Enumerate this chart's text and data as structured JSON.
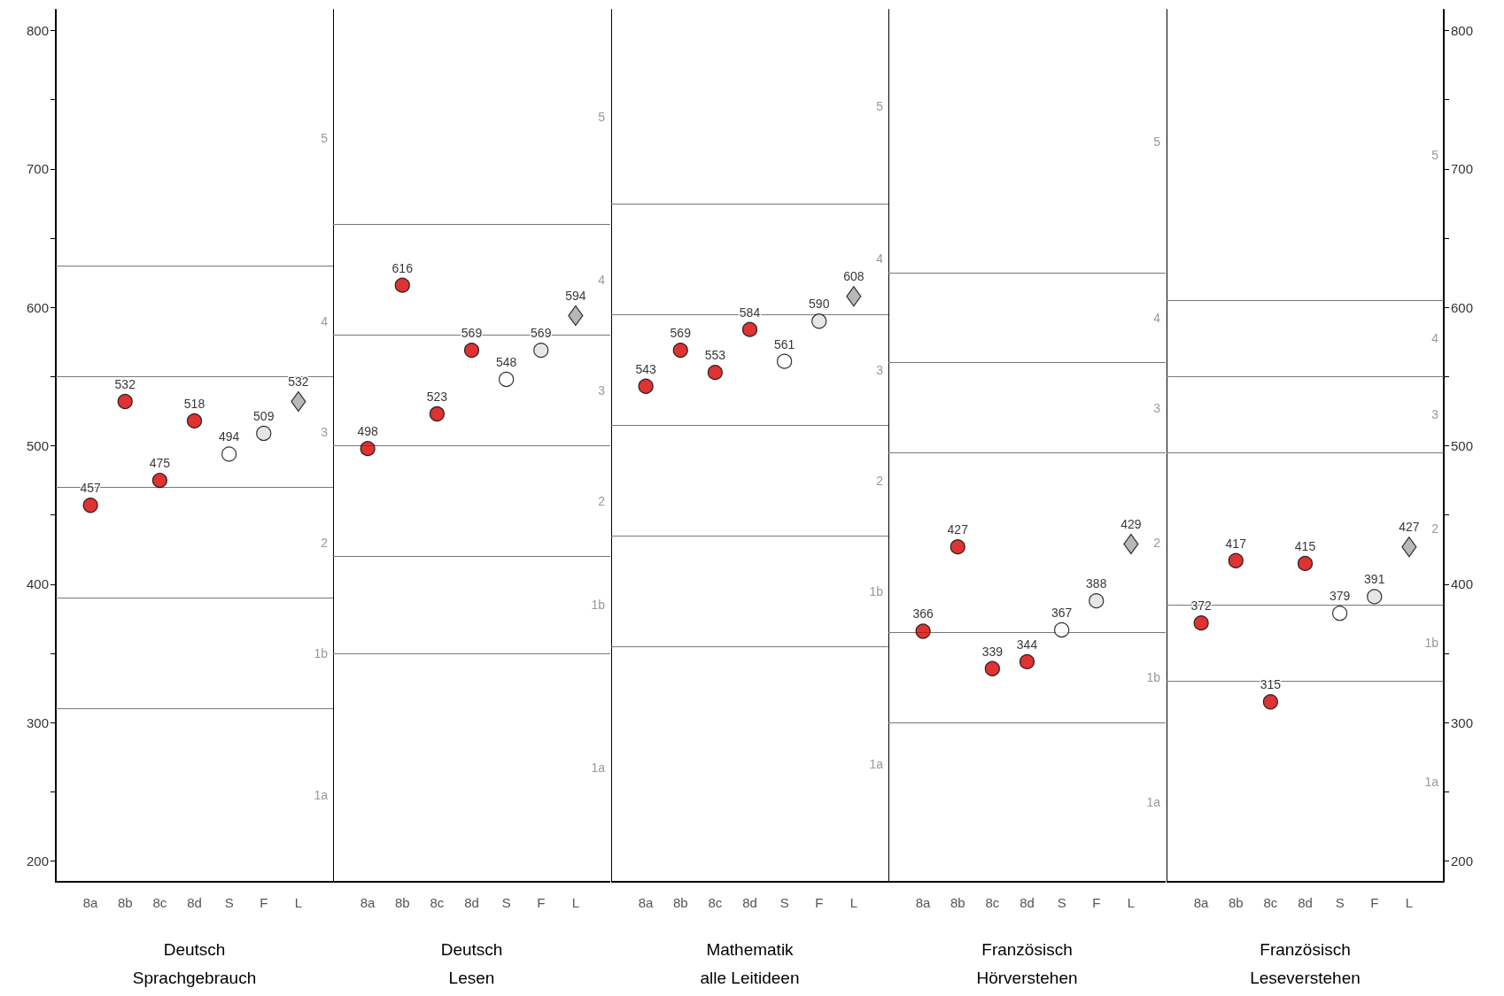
{
  "chart_data": [
    {
      "type": "scatter",
      "xlabel": "Deutsch\nSprachgebrauch",
      "categories": [
        "8a",
        "8b",
        "8c",
        "8d",
        "S",
        "F",
        "L"
      ],
      "ylim": [
        185,
        815
      ],
      "yticks": [
        200,
        {
          "value": 250,
          "label": null
        },
        300,
        {
          "value": 350,
          "label": null
        },
        400,
        {
          "value": 450,
          "label": null
        },
        500,
        {
          "value": 550,
          "label": null
        },
        600,
        {
          "value": 650,
          "label": null
        },
        700,
        {
          "value": 750,
          "label": null
        },
        800
      ],
      "data_labels": true,
      "grid": false,
      "series": [
        {
          "color": "#d40000",
          "marker": "circle",
          "values": [
            457,
            532,
            475,
            518,
            null,
            null,
            null
          ]
        },
        {
          "color": "#ffffff",
          "marker": "circle",
          "values": [
            null,
            null,
            null,
            null,
            494,
            null,
            null
          ]
        },
        {
          "color": "#e0e0e0",
          "marker": "circle",
          "values": [
            null,
            null,
            null,
            null,
            null,
            509,
            null
          ]
        },
        {
          "color": "#a6a6a6",
          "marker": "diamond",
          "values": [
            null,
            null,
            null,
            null,
            null,
            null,
            532
          ]
        }
      ],
      "ref_lines": [
        {
          "axis": "y",
          "value": 630
        },
        {
          "axis": "y",
          "value": 550
        },
        {
          "axis": "y",
          "value": 470
        },
        {
          "axis": "y",
          "value": 390
        },
        {
          "axis": "y",
          "value": 310
        }
      ],
      "annotations": [
        "5",
        "4",
        "3",
        "2",
        "1b",
        "1a"
      ]
    },
    {
      "type": "scatter",
      "xlabel": "Deutsch\nLesen",
      "categories": [
        "8a",
        "8b",
        "8c",
        "8d",
        "S",
        "F",
        "L"
      ],
      "ylim": [
        185,
        815
      ],
      "tick_labels": "x",
      "data_labels": true,
      "grid": false,
      "series": [
        {
          "color": "#d40000",
          "marker": "circle",
          "values": [
            498,
            616,
            523,
            569,
            null,
            null,
            null
          ]
        },
        {
          "color": "#ffffff",
          "marker": "circle",
          "values": [
            null,
            null,
            null,
            null,
            548,
            null,
            null
          ]
        },
        {
          "color": "#e0e0e0",
          "marker": "circle",
          "values": [
            null,
            null,
            null,
            null,
            null,
            569,
            null
          ]
        },
        {
          "color": "#a6a6a6",
          "marker": "diamond",
          "values": [
            null,
            null,
            null,
            null,
            null,
            null,
            594
          ]
        }
      ],
      "ref_lines": [
        {
          "axis": "y",
          "value": 660
        },
        {
          "axis": "y",
          "value": 580
        },
        {
          "axis": "y",
          "value": 500
        },
        {
          "axis": "y",
          "value": 420
        },
        {
          "axis": "y",
          "value": 350
        }
      ],
      "annotations": [
        "5",
        "4",
        "3",
        "2",
        "1b",
        "1a"
      ]
    },
    {
      "type": "scatter",
      "xlabel": "Mathematik\nalle Leitideen",
      "categories": [
        "8a",
        "8b",
        "8c",
        "8d",
        "S",
        "F",
        "L"
      ],
      "ylim": [
        185,
        815
      ],
      "tick_labels": "x",
      "data_labels": true,
      "grid": false,
      "series": [
        {
          "color": "#d40000",
          "marker": "circle",
          "values": [
            543,
            569,
            553,
            584,
            null,
            null,
            null
          ]
        },
        {
          "color": "#ffffff",
          "marker": "circle",
          "values": [
            null,
            null,
            null,
            null,
            561,
            null,
            null
          ]
        },
        {
          "color": "#e0e0e0",
          "marker": "circle",
          "values": [
            null,
            null,
            null,
            null,
            null,
            590,
            null
          ]
        },
        {
          "color": "#a6a6a6",
          "marker": "diamond",
          "values": [
            null,
            null,
            null,
            null,
            null,
            null,
            608
          ]
        }
      ],
      "ref_lines": [
        {
          "axis": "y",
          "value": 675
        },
        {
          "axis": "y",
          "value": 595
        },
        {
          "axis": "y",
          "value": 515
        },
        {
          "axis": "y",
          "value": 435
        },
        {
          "axis": "y",
          "value": 355
        }
      ],
      "annotations": [
        "5",
        "4",
        "3",
        "2",
        "1b",
        "1a"
      ]
    },
    {
      "type": "scatter",
      "xlabel": "Französisch\nHörverstehen",
      "categories": [
        "8a",
        "8b",
        "8c",
        "8d",
        "S",
        "F",
        "L"
      ],
      "ylim": [
        185,
        815
      ],
      "tick_labels": "x",
      "data_labels": true,
      "grid": false,
      "series": [
        {
          "color": "#d40000",
          "marker": "circle",
          "values": [
            366,
            427,
            339,
            344,
            null,
            null,
            null
          ]
        },
        {
          "color": "#ffffff",
          "marker": "circle",
          "values": [
            null,
            null,
            null,
            null,
            367,
            null,
            null
          ]
        },
        {
          "color": "#e0e0e0",
          "marker": "circle",
          "values": [
            null,
            null,
            null,
            null,
            null,
            388,
            null
          ]
        },
        {
          "color": "#a6a6a6",
          "marker": "diamond",
          "values": [
            null,
            null,
            null,
            null,
            null,
            null,
            429
          ]
        }
      ],
      "ref_lines": [
        {
          "axis": "y",
          "value": 625
        },
        {
          "axis": "y",
          "value": 560
        },
        {
          "axis": "y",
          "value": 495
        },
        {
          "axis": "y",
          "value": 365
        },
        {
          "axis": "y",
          "value": 300
        }
      ],
      "annotations": [
        "5",
        "4",
        "3",
        "2",
        "1b",
        "1a"
      ]
    },
    {
      "type": "scatter",
      "xlabel": "Französisch\nLeseverstehen",
      "categories": [
        "8a",
        "8b",
        "8c",
        "8d",
        "S",
        "F",
        "L"
      ],
      "y2lim": [
        185,
        815
      ],
      "y2ticks": [
        200,
        {
          "value": 250,
          "label": null
        },
        300,
        {
          "value": 350,
          "label": null
        },
        400,
        {
          "value": 450,
          "label": null
        },
        500,
        {
          "value": 550,
          "label": null
        },
        600,
        {
          "value": 650,
          "label": null
        },
        700,
        {
          "value": 750,
          "label": null
        },
        800
      ],
      "data_labels": true,
      "grid": false,
      "series": [
        {
          "color": "#d40000",
          "marker": "circle",
          "axis": "y2",
          "values": [
            372,
            417,
            315,
            415,
            null,
            null,
            null
          ]
        },
        {
          "color": "#ffffff",
          "marker": "circle",
          "axis": "y2",
          "values": [
            null,
            null,
            null,
            null,
            379,
            null,
            null
          ]
        },
        {
          "color": "#e0e0e0",
          "marker": "circle",
          "axis": "y2",
          "values": [
            null,
            null,
            null,
            null,
            null,
            391,
            null
          ]
        },
        {
          "color": "#a6a6a6",
          "marker": "diamond",
          "axis": "y2",
          "values": [
            null,
            null,
            null,
            null,
            null,
            null,
            427
          ]
        }
      ],
      "ref_lines": [
        {
          "axis": "y2",
          "value": 605
        },
        {
          "axis": "y2",
          "value": 550
        },
        {
          "axis": "y2",
          "value": 495
        },
        {
          "axis": "y2",
          "value": 385
        },
        {
          "axis": "y2",
          "value": 330
        }
      ],
      "annotations": [
        "5",
        "4",
        "3",
        "2",
        "1b",
        "1a"
      ]
    }
  ]
}
